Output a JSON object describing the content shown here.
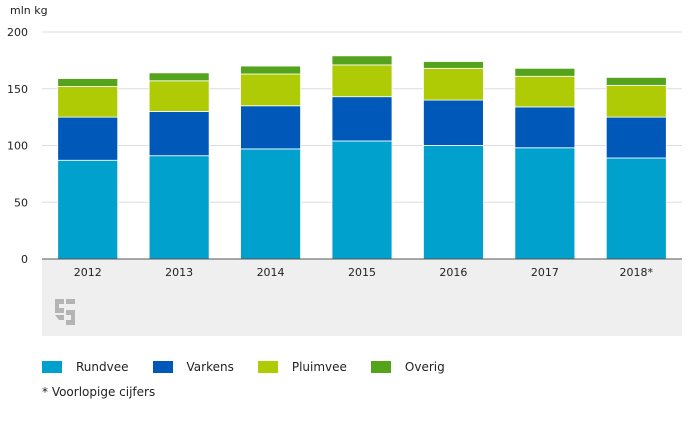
{
  "chart_data": {
    "type": "bar",
    "stacked": true,
    "ylabel": "mln kg",
    "ylim": [
      0,
      200
    ],
    "yticks": [
      0,
      50,
      100,
      150,
      200
    ],
    "grid": true,
    "categories": [
      "2012",
      "2013",
      "2014",
      "2015",
      "2016",
      "2017",
      "2018*"
    ],
    "series": [
      {
        "name": "Rundvee",
        "color": "#00a1cd",
        "values": [
          87,
          91,
          97,
          104,
          100,
          98,
          89
        ]
      },
      {
        "name": "Varkens",
        "color": "#0058b8",
        "values": [
          38,
          39,
          38,
          39,
          40,
          36,
          36
        ]
      },
      {
        "name": "Pluimvee",
        "color": "#afcb05",
        "values": [
          27,
          27,
          28,
          28,
          28,
          27,
          28
        ]
      },
      {
        "name": "Overig",
        "color": "#53a31d",
        "values": [
          7,
          7,
          7,
          8,
          6,
          7,
          7
        ]
      }
    ],
    "legend_position": "bottom",
    "footnote": "* Voorlopige cijfers"
  },
  "logo": {
    "icon": "cbs-logo-icon",
    "color": "#b4b4b4"
  },
  "colors": {
    "panel": "#efefef",
    "grid": "#dddddd",
    "axis": "#555555"
  }
}
